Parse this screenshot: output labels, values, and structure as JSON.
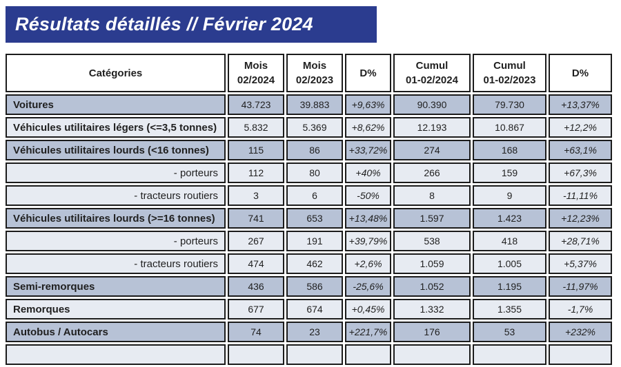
{
  "title": "Résultats détaillés // Février 2024",
  "colors": {
    "banner": "#2b3c8f",
    "title_text": "#ffffff",
    "row_dark": "#b7c2d6",
    "row_light": "#e7ebf2",
    "border": "#1b1b1b",
    "text": "#1f1f1f"
  },
  "table": {
    "columns": [
      {
        "label": "Catégories"
      },
      {
        "label": "Mois\n02/2024"
      },
      {
        "label": "Mois\n02/2023"
      },
      {
        "label": "D%"
      },
      {
        "label": "Cumul\n01-02/2024"
      },
      {
        "label": "Cumul\n01-02/2023"
      },
      {
        "label": "D%"
      }
    ],
    "rows": [
      {
        "category": "Voitures",
        "indent": false,
        "variant": "dark",
        "values": [
          "43.723",
          "39.883",
          "+9,63%",
          "90.390",
          "79.730",
          "+13,37%"
        ]
      },
      {
        "category": "Véhicules utilitaires légers (<=3,5 tonnes)",
        "indent": false,
        "variant": "light",
        "values": [
          "5.832",
          "5.369",
          "+8,62%",
          "12.193",
          "10.867",
          "+12,2%"
        ]
      },
      {
        "category": "Véhicules utilitaires lourds (<16 tonnes)",
        "indent": false,
        "variant": "dark",
        "values": [
          "115",
          "86",
          "+33,72%",
          "274",
          "168",
          "+63,1%"
        ]
      },
      {
        "category": "- porteurs",
        "indent": true,
        "variant": "light",
        "values": [
          "112",
          "80",
          "+40%",
          "266",
          "159",
          "+67,3%"
        ]
      },
      {
        "category": "- tracteurs routiers",
        "indent": true,
        "variant": "light",
        "values": [
          "3",
          "6",
          "-50%",
          "8",
          "9",
          "-11,11%"
        ]
      },
      {
        "category": "Véhicules utilitaires lourds (>=16 tonnes)",
        "indent": false,
        "variant": "dark",
        "values": [
          "741",
          "653",
          "+13,48%",
          "1.597",
          "1.423",
          "+12,23%"
        ]
      },
      {
        "category": "- porteurs",
        "indent": true,
        "variant": "light",
        "values": [
          "267",
          "191",
          "+39,79%",
          "538",
          "418",
          "+28,71%"
        ]
      },
      {
        "category": "- tracteurs routiers",
        "indent": true,
        "variant": "light",
        "values": [
          "474",
          "462",
          "+2,6%",
          "1.059",
          "1.005",
          "+5,37%"
        ]
      },
      {
        "category": "Semi-remorques",
        "indent": false,
        "variant": "dark",
        "values": [
          "436",
          "586",
          "-25,6%",
          "1.052",
          "1.195",
          "-11,97%"
        ]
      },
      {
        "category": "Remorques",
        "indent": false,
        "variant": "light",
        "values": [
          "677",
          "674",
          "+0,45%",
          "1.332",
          "1.355",
          "-1,7%"
        ]
      },
      {
        "category": "Autobus / Autocars",
        "indent": false,
        "variant": "dark",
        "values": [
          "74",
          "23",
          "+221,7%",
          "176",
          "53",
          "+232%"
        ]
      },
      {
        "category": "",
        "indent": false,
        "variant": "light",
        "values": [
          "",
          "",
          "",
          "",
          "",
          ""
        ]
      }
    ]
  }
}
